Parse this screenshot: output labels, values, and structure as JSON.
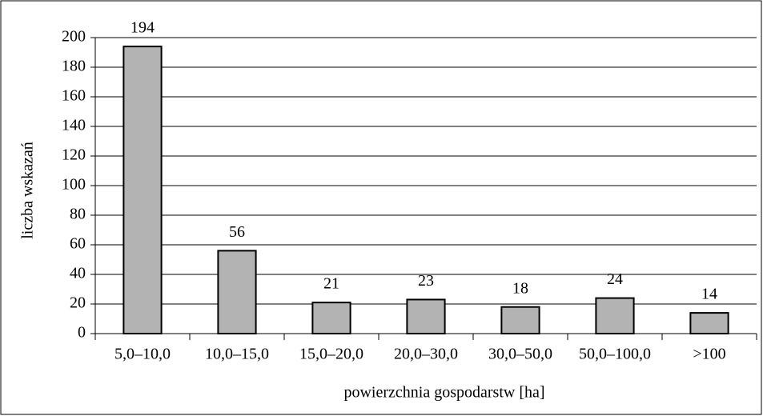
{
  "chart_data": {
    "type": "bar",
    "x_label": "powierzchnia gospodarstw [ha]",
    "y_label": "liczba wskazań",
    "categories": [
      "5,0–10,0",
      "10,0–15,0",
      "15,0–20,0",
      "20,0–30,0",
      "30,0–50,0",
      "50,0–100,0",
      ">100"
    ],
    "values": [
      194,
      56,
      21,
      23,
      18,
      24,
      14
    ],
    "color": "#b3b3b3",
    "ylim": [
      0,
      200
    ],
    "yticks": [
      0,
      20,
      40,
      60,
      80,
      100,
      120,
      140,
      160,
      180,
      200
    ],
    "grid": true
  }
}
